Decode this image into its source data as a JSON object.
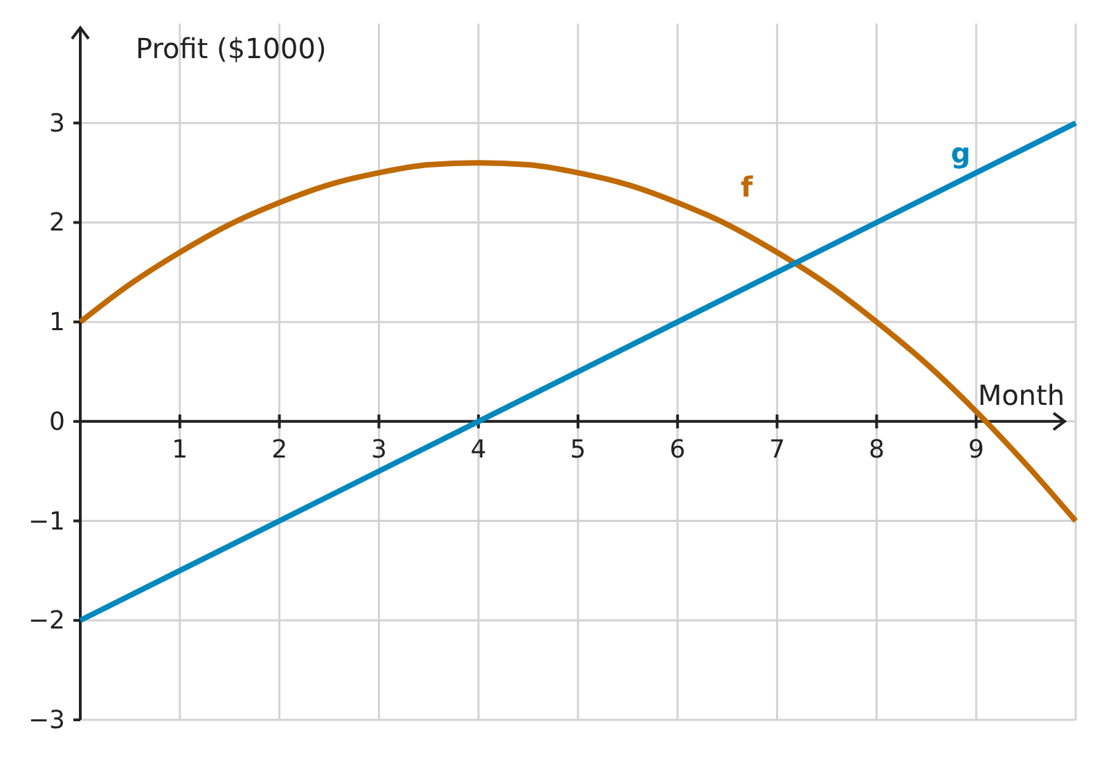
{
  "chart_data": {
    "type": "line",
    "xlabel": "Month",
    "ylabel": "Profit ($1000)",
    "xlim": [
      0,
      10
    ],
    "ylim": [
      -3,
      4
    ],
    "xticks": [
      1,
      2,
      3,
      4,
      5,
      6,
      7,
      8,
      9,
      {
        "value": 10,
        "label": null
      }
    ],
    "yticks": [
      {
        "value": -3,
        "label": "−3"
      },
      {
        "value": -2,
        "label": "−2"
      },
      {
        "value": -1,
        "label": "−1"
      },
      0,
      1,
      2,
      3
    ],
    "grid": true,
    "marker": "none",
    "line_style": "solid",
    "series": [
      {
        "name": "f",
        "color": "#bf6a02",
        "x": [
          0,
          0.5,
          1,
          1.5,
          2,
          2.5,
          3,
          3.5,
          4,
          4.5,
          5,
          5.5,
          6,
          6.5,
          7,
          7.5,
          8,
          8.5,
          9,
          9.5,
          10
        ],
        "values": [
          1,
          1.38,
          1.7,
          1.98,
          2.2,
          2.38,
          2.5,
          2.58,
          2.6,
          2.58,
          2.5,
          2.38,
          2.2,
          1.98,
          1.7,
          1.38,
          1,
          0.58,
          0.1,
          -0.43,
          -1
        ]
      },
      {
        "name": "g",
        "color": "#0087be",
        "x": [
          0,
          10
        ],
        "values": [
          -2,
          3
        ]
      }
    ]
  }
}
